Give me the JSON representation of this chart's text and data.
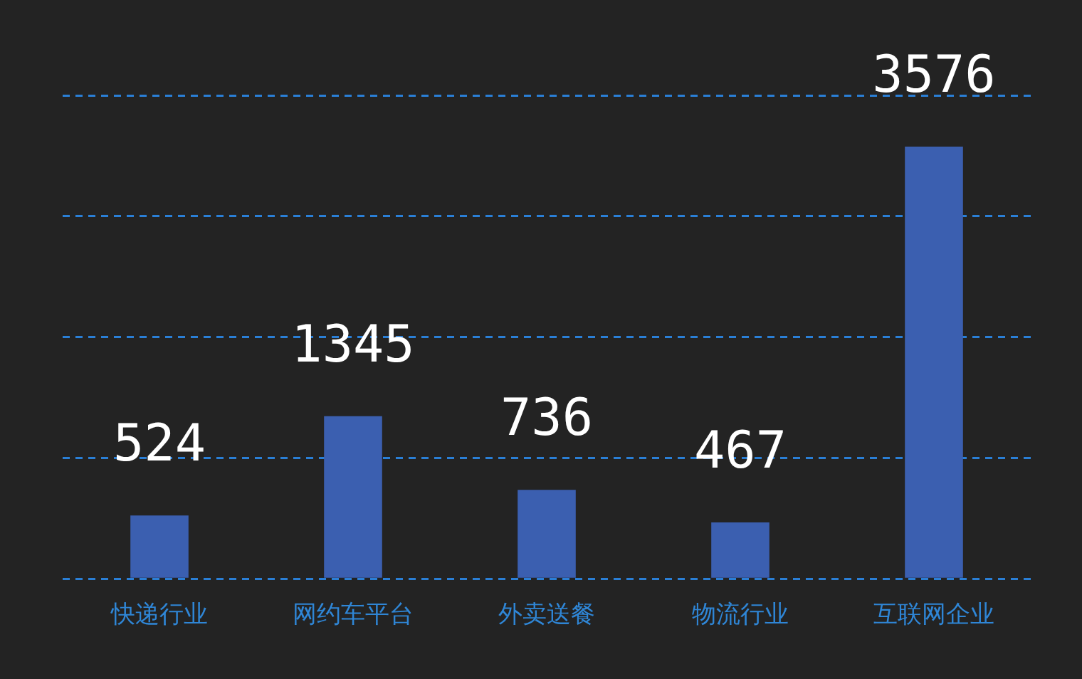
{
  "chart_data": {
    "type": "bar",
    "categories": [
      "快递行业",
      "网约车平台",
      "外卖送餐",
      "物流行业",
      "互联网企业"
    ],
    "values": [
      524,
      1345,
      736,
      467,
      3576
    ],
    "color": "#3b5fb0",
    "ylim": [
      0,
      4000
    ],
    "yticks": [
      {
        "value": 0,
        "label": null
      },
      {
        "value": 1000,
        "label": null
      },
      {
        "value": 2000,
        "label": null
      },
      {
        "value": 3000,
        "label": null
      },
      {
        "value": 4000,
        "label": null
      }
    ],
    "grid": "y",
    "tick_labels": "x",
    "data_labels": true
  }
}
